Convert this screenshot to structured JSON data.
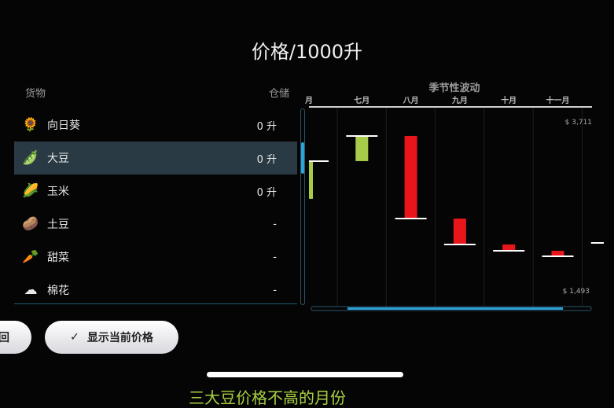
{
  "title": "价格/1000升",
  "headers": {
    "goods": "货物",
    "storage": "仓储"
  },
  "items": [
    {
      "name": "向日葵",
      "qty": "0 升",
      "icon": "sunflower-icon",
      "glyph": "🌻",
      "selected": false
    },
    {
      "name": "大豆",
      "qty": "0 升",
      "icon": "soybean-icon",
      "glyph": "🫛",
      "selected": true
    },
    {
      "name": "玉米",
      "qty": "0 升",
      "icon": "corn-icon",
      "glyph": "🌽",
      "selected": false
    },
    {
      "name": "土豆",
      "qty": "-",
      "icon": "potato-icon",
      "glyph": "🥔",
      "selected": false
    },
    {
      "name": "甜菜",
      "qty": "-",
      "icon": "beet-icon",
      "glyph": "🥕",
      "selected": false
    },
    {
      "name": "棉花",
      "qty": "-",
      "icon": "cotton-icon",
      "glyph": "☁",
      "selected": false
    }
  ],
  "buttons": {
    "back": "回",
    "show_price": "显示当前价格",
    "check": "✓"
  },
  "bottom_text": "三大豆价格不高的月份",
  "chart_data": {
    "type": "bar",
    "title": "季节性波动",
    "categories": [
      "月",
      "七月",
      "八月",
      "九月",
      "十月",
      "十一月",
      "-"
    ],
    "values": [
      3180,
      3507,
      2433,
      2096,
      2014,
      1943,
      2116
    ],
    "start_value": 2690,
    "max_label": "$ 3,711",
    "min_label": "$ 1,493",
    "ylim": [
      1493,
      3711
    ],
    "colors": {
      "up": "#a8cc4a",
      "down": "#e8161a",
      "marker": "#ffffff",
      "accent": "#2aa3d8"
    }
  }
}
